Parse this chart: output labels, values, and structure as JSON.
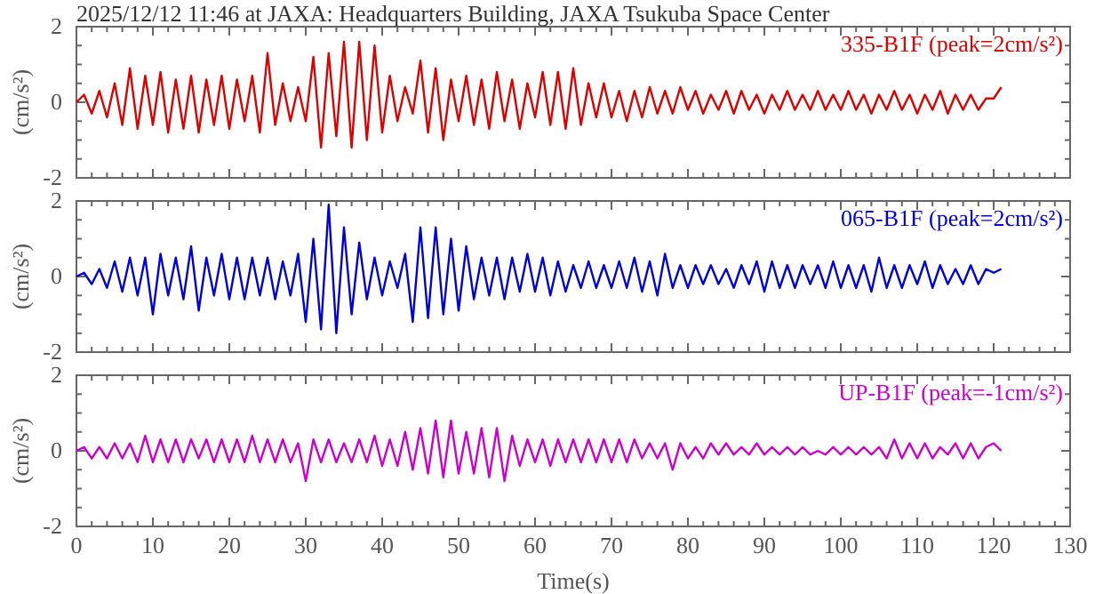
{
  "chart_data": [
    {
      "type": "line",
      "title": "2025/12/12 11:46 at JAXA: Headquarters Building, JAXA Tsukuba Space Center",
      "ylabel": "(cm/s²)",
      "tick_labels": "y",
      "line_style": "solid",
      "xlim": [
        0,
        130
      ],
      "ylim": [
        -2,
        2
      ],
      "xticks": [
        0,
        {
          "value": 2,
          "label": null
        },
        {
          "value": 4,
          "label": null
        },
        {
          "value": 6,
          "label": null
        },
        {
          "value": 8,
          "label": null
        },
        10,
        {
          "value": 12,
          "label": null
        },
        {
          "value": 14,
          "label": null
        },
        {
          "value": 16,
          "label": null
        },
        {
          "value": 18,
          "label": null
        },
        20,
        {
          "value": 22,
          "label": null
        },
        {
          "value": 24,
          "label": null
        },
        {
          "value": 26,
          "label": null
        },
        {
          "value": 28,
          "label": null
        },
        30,
        {
          "value": 32,
          "label": null
        },
        {
          "value": 34,
          "label": null
        },
        {
          "value": 36,
          "label": null
        },
        {
          "value": 38,
          "label": null
        },
        40,
        {
          "value": 42,
          "label": null
        },
        {
          "value": 44,
          "label": null
        },
        {
          "value": 46,
          "label": null
        },
        {
          "value": 48,
          "label": null
        },
        50,
        {
          "value": 52,
          "label": null
        },
        {
          "value": 54,
          "label": null
        },
        {
          "value": 56,
          "label": null
        },
        {
          "value": 58,
          "label": null
        },
        60,
        {
          "value": 62,
          "label": null
        },
        {
          "value": 64,
          "label": null
        },
        {
          "value": 66,
          "label": null
        },
        {
          "value": 68,
          "label": null
        },
        70,
        {
          "value": 72,
          "label": null
        },
        {
          "value": 74,
          "label": null
        },
        {
          "value": 76,
          "label": null
        },
        {
          "value": 78,
          "label": null
        },
        80,
        {
          "value": 82,
          "label": null
        },
        {
          "value": 84,
          "label": null
        },
        {
          "value": 86,
          "label": null
        },
        {
          "value": 88,
          "label": null
        },
        90,
        {
          "value": 92,
          "label": null
        },
        {
          "value": 94,
          "label": null
        },
        {
          "value": 96,
          "label": null
        },
        {
          "value": 98,
          "label": null
        },
        100,
        {
          "value": 102,
          "label": null
        },
        {
          "value": 104,
          "label": null
        },
        {
          "value": 106,
          "label": null
        },
        {
          "value": 108,
          "label": null
        },
        110,
        {
          "value": 112,
          "label": null
        },
        {
          "value": 114,
          "label": null
        },
        {
          "value": 116,
          "label": null
        },
        {
          "value": 118,
          "label": null
        },
        120,
        {
          "value": 122,
          "label": null
        },
        {
          "value": 124,
          "label": null
        },
        {
          "value": 126,
          "label": null
        },
        {
          "value": 128,
          "label": null
        },
        130
      ],
      "yticks": [
        -2,
        {
          "value": -1.5,
          "label": null
        },
        {
          "value": -1,
          "label": null
        },
        {
          "value": -0.5,
          "label": null
        },
        0,
        {
          "value": 0.5,
          "label": null
        },
        {
          "value": 1,
          "label": null
        },
        {
          "value": 1.5,
          "label": null
        },
        2
      ],
      "x": [
        0,
        1,
        2,
        3,
        4,
        5,
        6,
        7,
        8,
        9,
        10,
        11,
        12,
        13,
        14,
        15,
        16,
        17,
        18,
        19,
        20,
        21,
        22,
        23,
        24,
        25,
        26,
        27,
        28,
        29,
        30,
        31,
        32,
        33,
        34,
        35,
        36,
        37,
        38,
        39,
        40,
        41,
        42,
        43,
        44,
        45,
        46,
        47,
        48,
        49,
        50,
        51,
        52,
        53,
        54,
        55,
        56,
        57,
        58,
        59,
        60,
        61,
        62,
        63,
        64,
        65,
        66,
        67,
        68,
        69,
        70,
        71,
        72,
        73,
        74,
        75,
        76,
        77,
        78,
        79,
        80,
        81,
        82,
        83,
        84,
        85,
        86,
        87,
        88,
        89,
        90,
        91,
        92,
        93,
        94,
        95,
        96,
        97,
        98,
        99,
        100,
        101,
        102,
        103,
        104,
        105,
        106,
        107,
        108,
        109,
        110,
        111,
        112,
        113,
        114,
        115,
        116,
        117,
        118,
        119,
        120,
        121
      ],
      "series": [
        {
          "name": "335-B1F (peak=2cm/s²)",
          "color": "#dd0000",
          "values": [
            0,
            0.2,
            -0.3,
            0.3,
            -0.4,
            0.5,
            -0.6,
            0.9,
            -0.7,
            0.7,
            -0.6,
            0.8,
            -0.8,
            0.6,
            -0.7,
            0.7,
            -0.8,
            0.6,
            -0.6,
            0.7,
            -0.7,
            0.6,
            -0.5,
            0.7,
            -0.8,
            1.3,
            -0.6,
            0.5,
            -0.5,
            0.4,
            -0.5,
            1.2,
            -1.2,
            1.3,
            -0.9,
            1.6,
            -1.2,
            1.6,
            -1.0,
            1.5,
            -0.8,
            0.7,
            -0.5,
            0.4,
            -0.3,
            1.1,
            -0.8,
            0.9,
            -1.0,
            0.6,
            -0.5,
            0.7,
            -0.6,
            0.6,
            -0.7,
            0.8,
            -0.5,
            0.6,
            -0.7,
            0.5,
            -0.4,
            0.8,
            -0.6,
            0.8,
            -0.7,
            0.9,
            -0.6,
            0.5,
            -0.4,
            0.5,
            -0.4,
            0.3,
            -0.5,
            0.3,
            -0.4,
            0.4,
            -0.3,
            0.3,
            -0.3,
            0.4,
            -0.2,
            0.3,
            -0.3,
            0.2,
            -0.2,
            0.3,
            -0.3,
            0.3,
            -0.2,
            0.2,
            -0.3,
            0.2,
            -0.2,
            0.3,
            -0.2,
            0.2,
            -0.2,
            0.3,
            -0.2,
            0.2,
            -0.2,
            0.3,
            -0.2,
            0.2,
            -0.3,
            0.2,
            -0.2,
            0.3,
            -0.2,
            0.2,
            -0.3,
            0.2,
            -0.2,
            0.3,
            -0.3,
            0.2,
            -0.2,
            0.2,
            -0.2,
            0.1,
            0.1,
            0.4
          ]
        }
      ]
    },
    {
      "type": "line",
      "ylabel": "(cm/s²)",
      "tick_labels": "y",
      "line_style": "solid",
      "xlim": [
        0,
        130
      ],
      "ylim": [
        -2,
        2
      ],
      "xticks": [
        0,
        {
          "value": 2,
          "label": null
        },
        {
          "value": 4,
          "label": null
        },
        {
          "value": 6,
          "label": null
        },
        {
          "value": 8,
          "label": null
        },
        10,
        {
          "value": 12,
          "label": null
        },
        {
          "value": 14,
          "label": null
        },
        {
          "value": 16,
          "label": null
        },
        {
          "value": 18,
          "label": null
        },
        20,
        {
          "value": 22,
          "label": null
        },
        {
          "value": 24,
          "label": null
        },
        {
          "value": 26,
          "label": null
        },
        {
          "value": 28,
          "label": null
        },
        30,
        {
          "value": 32,
          "label": null
        },
        {
          "value": 34,
          "label": null
        },
        {
          "value": 36,
          "label": null
        },
        {
          "value": 38,
          "label": null
        },
        40,
        {
          "value": 42,
          "label": null
        },
        {
          "value": 44,
          "label": null
        },
        {
          "value": 46,
          "label": null
        },
        {
          "value": 48,
          "label": null
        },
        50,
        {
          "value": 52,
          "label": null
        },
        {
          "value": 54,
          "label": null
        },
        {
          "value": 56,
          "label": null
        },
        {
          "value": 58,
          "label": null
        },
        60,
        {
          "value": 62,
          "label": null
        },
        {
          "value": 64,
          "label": null
        },
        {
          "value": 66,
          "label": null
        },
        {
          "value": 68,
          "label": null
        },
        70,
        {
          "value": 72,
          "label": null
        },
        {
          "value": 74,
          "label": null
        },
        {
          "value": 76,
          "label": null
        },
        {
          "value": 78,
          "label": null
        },
        80,
        {
          "value": 82,
          "label": null
        },
        {
          "value": 84,
          "label": null
        },
        {
          "value": 86,
          "label": null
        },
        {
          "value": 88,
          "label": null
        },
        90,
        {
          "value": 92,
          "label": null
        },
        {
          "value": 94,
          "label": null
        },
        {
          "value": 96,
          "label": null
        },
        {
          "value": 98,
          "label": null
        },
        100,
        {
          "value": 102,
          "label": null
        },
        {
          "value": 104,
          "label": null
        },
        {
          "value": 106,
          "label": null
        },
        {
          "value": 108,
          "label": null
        },
        110,
        {
          "value": 112,
          "label": null
        },
        {
          "value": 114,
          "label": null
        },
        {
          "value": 116,
          "label": null
        },
        {
          "value": 118,
          "label": null
        },
        120,
        {
          "value": 122,
          "label": null
        },
        {
          "value": 124,
          "label": null
        },
        {
          "value": 126,
          "label": null
        },
        {
          "value": 128,
          "label": null
        },
        130
      ],
      "yticks": [
        -2,
        {
          "value": -1.5,
          "label": null
        },
        {
          "value": -1,
          "label": null
        },
        {
          "value": -0.5,
          "label": null
        },
        0,
        {
          "value": 0.5,
          "label": null
        },
        {
          "value": 1,
          "label": null
        },
        {
          "value": 1.5,
          "label": null
        },
        2
      ],
      "x": [
        0,
        1,
        2,
        3,
        4,
        5,
        6,
        7,
        8,
        9,
        10,
        11,
        12,
        13,
        14,
        15,
        16,
        17,
        18,
        19,
        20,
        21,
        22,
        23,
        24,
        25,
        26,
        27,
        28,
        29,
        30,
        31,
        32,
        33,
        34,
        35,
        36,
        37,
        38,
        39,
        40,
        41,
        42,
        43,
        44,
        45,
        46,
        47,
        48,
        49,
        50,
        51,
        52,
        53,
        54,
        55,
        56,
        57,
        58,
        59,
        60,
        61,
        62,
        63,
        64,
        65,
        66,
        67,
        68,
        69,
        70,
        71,
        72,
        73,
        74,
        75,
        76,
        77,
        78,
        79,
        80,
        81,
        82,
        83,
        84,
        85,
        86,
        87,
        88,
        89,
        90,
        91,
        92,
        93,
        94,
        95,
        96,
        97,
        98,
        99,
        100,
        101,
        102,
        103,
        104,
        105,
        106,
        107,
        108,
        109,
        110,
        111,
        112,
        113,
        114,
        115,
        116,
        117,
        118,
        119,
        120,
        121
      ],
      "series": [
        {
          "name": "065-B1F (peak=2cm/s²)",
          "color": "#0000dd",
          "values": [
            0,
            0.1,
            -0.2,
            0.2,
            -0.3,
            0.4,
            -0.4,
            0.5,
            -0.5,
            0.5,
            -1.0,
            0.6,
            -0.5,
            0.5,
            -0.6,
            0.8,
            -0.9,
            0.5,
            -0.5,
            0.6,
            -0.6,
            0.5,
            -0.6,
            0.5,
            -0.5,
            0.5,
            -0.6,
            0.4,
            -0.5,
            0.6,
            -1.2,
            1.0,
            -1.4,
            1.9,
            -1.5,
            1.3,
            -1.0,
            0.9,
            -0.6,
            0.5,
            -0.5,
            0.4,
            -0.3,
            0.6,
            -1.2,
            1.3,
            -1.1,
            1.3,
            -1.0,
            1.0,
            -0.9,
            0.8,
            -0.6,
            0.5,
            -0.5,
            0.5,
            -0.6,
            0.5,
            -0.4,
            0.6,
            -0.4,
            0.5,
            -0.5,
            0.4,
            -0.4,
            0.3,
            -0.3,
            0.4,
            -0.3,
            0.3,
            -0.3,
            0.4,
            -0.3,
            0.5,
            -0.4,
            0.4,
            -0.5,
            0.6,
            -0.3,
            0.3,
            -0.3,
            0.3,
            -0.2,
            0.3,
            -0.2,
            0.2,
            -0.3,
            0.3,
            -0.2,
            0.4,
            -0.4,
            0.4,
            -0.3,
            0.3,
            -0.3,
            0.3,
            -0.2,
            0.3,
            -0.3,
            0.4,
            -0.3,
            0.3,
            -0.3,
            0.3,
            -0.4,
            0.5,
            -0.3,
            0.3,
            -0.3,
            0.3,
            -0.2,
            0.4,
            -0.3,
            0.3,
            -0.2,
            0.2,
            -0.2,
            0.3,
            -0.2,
            0.2,
            0.1,
            0.2
          ]
        }
      ]
    },
    {
      "type": "line",
      "xlabel": "Time(s)",
      "ylabel": "(cm/s²)",
      "line_style": "solid",
      "xlim": [
        0,
        130
      ],
      "ylim": [
        -2,
        2
      ],
      "xticks": [
        0,
        {
          "value": 2,
          "label": null
        },
        {
          "value": 4,
          "label": null
        },
        {
          "value": 6,
          "label": null
        },
        {
          "value": 8,
          "label": null
        },
        10,
        {
          "value": 12,
          "label": null
        },
        {
          "value": 14,
          "label": null
        },
        {
          "value": 16,
          "label": null
        },
        {
          "value": 18,
          "label": null
        },
        20,
        {
          "value": 22,
          "label": null
        },
        {
          "value": 24,
          "label": null
        },
        {
          "value": 26,
          "label": null
        },
        {
          "value": 28,
          "label": null
        },
        30,
        {
          "value": 32,
          "label": null
        },
        {
          "value": 34,
          "label": null
        },
        {
          "value": 36,
          "label": null
        },
        {
          "value": 38,
          "label": null
        },
        40,
        {
          "value": 42,
          "label": null
        },
        {
          "value": 44,
          "label": null
        },
        {
          "value": 46,
          "label": null
        },
        {
          "value": 48,
          "label": null
        },
        50,
        {
          "value": 52,
          "label": null
        },
        {
          "value": 54,
          "label": null
        },
        {
          "value": 56,
          "label": null
        },
        {
          "value": 58,
          "label": null
        },
        60,
        {
          "value": 62,
          "label": null
        },
        {
          "value": 64,
          "label": null
        },
        {
          "value": 66,
          "label": null
        },
        {
          "value": 68,
          "label": null
        },
        70,
        {
          "value": 72,
          "label": null
        },
        {
          "value": 74,
          "label": null
        },
        {
          "value": 76,
          "label": null
        },
        {
          "value": 78,
          "label": null
        },
        80,
        {
          "value": 82,
          "label": null
        },
        {
          "value": 84,
          "label": null
        },
        {
          "value": 86,
          "label": null
        },
        {
          "value": 88,
          "label": null
        },
        90,
        {
          "value": 92,
          "label": null
        },
        {
          "value": 94,
          "label": null
        },
        {
          "value": 96,
          "label": null
        },
        {
          "value": 98,
          "label": null
        },
        100,
        {
          "value": 102,
          "label": null
        },
        {
          "value": 104,
          "label": null
        },
        {
          "value": 106,
          "label": null
        },
        {
          "value": 108,
          "label": null
        },
        110,
        {
          "value": 112,
          "label": null
        },
        {
          "value": 114,
          "label": null
        },
        {
          "value": 116,
          "label": null
        },
        {
          "value": 118,
          "label": null
        },
        120,
        {
          "value": 122,
          "label": null
        },
        {
          "value": 124,
          "label": null
        },
        {
          "value": 126,
          "label": null
        },
        {
          "value": 128,
          "label": null
        },
        130
      ],
      "yticks": [
        -2,
        {
          "value": -1.5,
          "label": null
        },
        {
          "value": -1,
          "label": null
        },
        {
          "value": -0.5,
          "label": null
        },
        0,
        {
          "value": 0.5,
          "label": null
        },
        {
          "value": 1,
          "label": null
        },
        {
          "value": 1.5,
          "label": null
        },
        2
      ],
      "x": [
        0,
        1,
        2,
        3,
        4,
        5,
        6,
        7,
        8,
        9,
        10,
        11,
        12,
        13,
        14,
        15,
        16,
        17,
        18,
        19,
        20,
        21,
        22,
        23,
        24,
        25,
        26,
        27,
        28,
        29,
        30,
        31,
        32,
        33,
        34,
        35,
        36,
        37,
        38,
        39,
        40,
        41,
        42,
        43,
        44,
        45,
        46,
        47,
        48,
        49,
        50,
        51,
        52,
        53,
        54,
        55,
        56,
        57,
        58,
        59,
        60,
        61,
        62,
        63,
        64,
        65,
        66,
        67,
        68,
        69,
        70,
        71,
        72,
        73,
        74,
        75,
        76,
        77,
        78,
        79,
        80,
        81,
        82,
        83,
        84,
        85,
        86,
        87,
        88,
        89,
        90,
        91,
        92,
        93,
        94,
        95,
        96,
        97,
        98,
        99,
        100,
        101,
        102,
        103,
        104,
        105,
        106,
        107,
        108,
        109,
        110,
        111,
        112,
        113,
        114,
        115,
        116,
        117,
        118,
        119,
        120,
        121
      ],
      "series": [
        {
          "name": "UP-B1F (peak=-1cm/s²)",
          "color": "#cc00cc",
          "values": [
            0,
            0.1,
            -0.2,
            0.1,
            -0.2,
            0.2,
            -0.2,
            0.2,
            -0.3,
            0.4,
            -0.3,
            0.3,
            -0.3,
            0.3,
            -0.3,
            0.3,
            -0.2,
            0.3,
            -0.3,
            0.3,
            -0.3,
            0.3,
            -0.3,
            0.4,
            -0.3,
            0.3,
            -0.3,
            0.3,
            -0.3,
            0.2,
            -0.8,
            0.3,
            -0.3,
            0.3,
            -0.3,
            0.2,
            -0.3,
            0.3,
            -0.3,
            0.4,
            -0.4,
            0.3,
            -0.4,
            0.5,
            -0.5,
            0.6,
            -0.6,
            0.8,
            -0.7,
            0.8,
            -0.6,
            0.5,
            -0.6,
            0.6,
            -0.7,
            0.6,
            -0.8,
            0.4,
            -0.4,
            0.3,
            -0.3,
            0.3,
            -0.4,
            0.3,
            -0.3,
            0.3,
            -0.3,
            0.3,
            -0.3,
            0.3,
            -0.3,
            0.3,
            -0.3,
            0.3,
            -0.2,
            0.2,
            -0.2,
            0.2,
            -0.5,
            0.2,
            -0.2,
            0.1,
            -0.2,
            0.2,
            -0.1,
            0.2,
            -0.1,
            0.1,
            -0.1,
            0.2,
            -0.1,
            0.1,
            -0.1,
            0.1,
            -0.1,
            0.1,
            -0.1,
            0,
            -0.1,
            0.1,
            -0.1,
            0.1,
            -0.1,
            0.1,
            -0.1,
            0.1,
            -0.2,
            0.3,
            -0.2,
            0.2,
            -0.2,
            0.2,
            -0.2,
            0.1,
            -0.1,
            0.2,
            -0.2,
            0.2,
            -0.2,
            0.1,
            0.2,
            0
          ]
        }
      ]
    }
  ]
}
